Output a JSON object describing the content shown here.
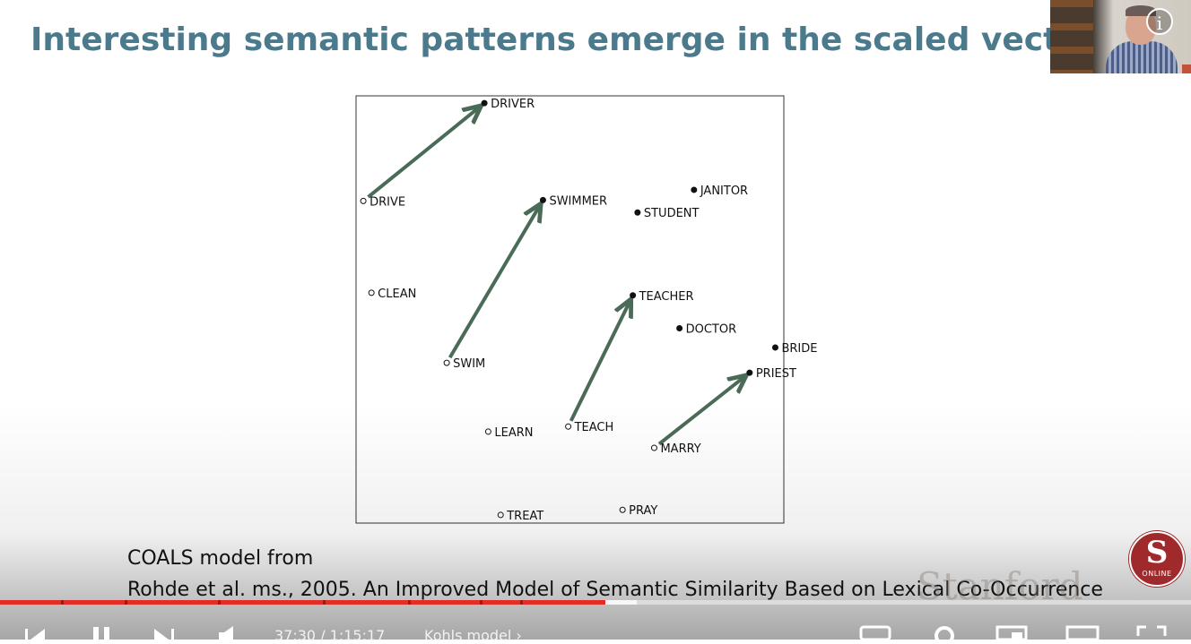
{
  "slide": {
    "title": "Interesting semantic patterns emerge in the scaled vectors",
    "caption_line1": "COALS model from",
    "caption_line2": "Rohde et al. ms., 2005. An Improved Model of Semantic Similarity Based on Lexical Co-Occurrence",
    "watermark": "Stanford",
    "badge_letter": "S",
    "badge_label": "ONLINE"
  },
  "player": {
    "time_display": "37:30 / 1:15:17",
    "chapter_title": "Kohls model",
    "chapter_chevron": "›",
    "info_symbol": "i",
    "progress_played": 0.508,
    "accent_color": "#e52d27"
  },
  "chart_data": {
    "type": "scatter",
    "title": "",
    "xlabel": "",
    "ylabel": "",
    "axes_ticks": false,
    "arrow_color": "#4a6b57",
    "xlim": [
      0,
      100
    ],
    "ylim": [
      0,
      100
    ],
    "points": [
      {
        "label": "DRIVER",
        "x": 30.0,
        "y": 98.3,
        "marker": "filled"
      },
      {
        "label": "DRIVE",
        "x": 1.7,
        "y": 75.4,
        "marker": "open"
      },
      {
        "label": "SWIMMER",
        "x": 43.7,
        "y": 75.6,
        "marker": "filled"
      },
      {
        "label": "JANITOR",
        "x": 79.0,
        "y": 78.0,
        "marker": "filled"
      },
      {
        "label": "STUDENT",
        "x": 65.8,
        "y": 72.7,
        "marker": "filled"
      },
      {
        "label": "CLEAN",
        "x": 3.6,
        "y": 53.9,
        "marker": "open"
      },
      {
        "label": "TEACHER",
        "x": 64.7,
        "y": 53.3,
        "marker": "filled"
      },
      {
        "label": "DOCTOR",
        "x": 75.6,
        "y": 45.6,
        "marker": "filled"
      },
      {
        "label": "BRIDE",
        "x": 98.0,
        "y": 41.1,
        "marker": "filled"
      },
      {
        "label": "PRIEST",
        "x": 92.0,
        "y": 35.2,
        "marker": "filled"
      },
      {
        "label": "SWIM",
        "x": 21.2,
        "y": 37.5,
        "marker": "open"
      },
      {
        "label": "LEARN",
        "x": 30.9,
        "y": 21.4,
        "marker": "open"
      },
      {
        "label": "TEACH",
        "x": 49.6,
        "y": 22.6,
        "marker": "open"
      },
      {
        "label": "MARRY",
        "x": 69.7,
        "y": 17.6,
        "marker": "open"
      },
      {
        "label": "TREAT",
        "x": 33.8,
        "y": 1.9,
        "marker": "open"
      },
      {
        "label": "PRAY",
        "x": 62.3,
        "y": 3.1,
        "marker": "open"
      }
    ],
    "arrows": [
      {
        "from": "DRIVE",
        "to": "DRIVER"
      },
      {
        "from": "SWIM",
        "to": "SWIMMER"
      },
      {
        "from": "TEACH",
        "to": "TEACHER"
      },
      {
        "from": "MARRY",
        "to": "PRIEST"
      }
    ]
  }
}
